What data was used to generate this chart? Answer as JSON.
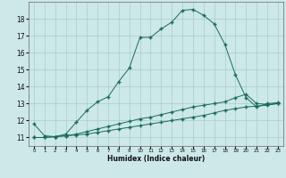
{
  "xlabel": "Humidex (Indice chaleur)",
  "bg_color": "#cce8e8",
  "grid_color": "#aacccc",
  "line_color": "#1a6b5a",
  "xlim": [
    -0.5,
    23.5
  ],
  "ylim": [
    10.5,
    19.0
  ],
  "yticks": [
    11,
    12,
    13,
    14,
    15,
    16,
    17,
    18
  ],
  "xticks": [
    0,
    1,
    2,
    3,
    4,
    5,
    6,
    7,
    8,
    9,
    10,
    11,
    12,
    13,
    14,
    15,
    16,
    17,
    18,
    19,
    20,
    21,
    22,
    23
  ],
  "curve1_x": [
    0,
    1,
    2,
    3,
    4,
    5,
    6,
    7,
    8,
    9,
    10,
    11,
    12,
    13,
    14,
    15,
    16,
    17,
    18,
    19,
    20,
    21,
    22,
    23
  ],
  "curve1_y": [
    11.8,
    11.1,
    11.05,
    11.2,
    11.9,
    12.6,
    13.1,
    13.4,
    14.3,
    15.1,
    16.9,
    16.9,
    17.4,
    17.8,
    18.5,
    18.55,
    18.2,
    17.7,
    16.5,
    14.7,
    13.35,
    12.8,
    13.0,
    13.05
  ],
  "curve2_x": [
    0,
    1,
    2,
    3,
    4,
    5,
    6,
    7,
    8,
    9,
    10,
    11,
    12,
    13,
    14,
    15,
    16,
    17,
    18,
    19,
    20,
    21,
    22,
    23
  ],
  "curve2_y": [
    11.0,
    11.0,
    11.05,
    11.1,
    11.2,
    11.35,
    11.5,
    11.65,
    11.8,
    11.95,
    12.1,
    12.2,
    12.35,
    12.5,
    12.65,
    12.8,
    12.9,
    13.0,
    13.1,
    13.35,
    13.55,
    13.0,
    12.95,
    13.0
  ],
  "curve3_x": [
    0,
    1,
    2,
    3,
    4,
    5,
    6,
    7,
    8,
    9,
    10,
    11,
    12,
    13,
    14,
    15,
    16,
    17,
    18,
    19,
    20,
    21,
    22,
    23
  ],
  "curve3_y": [
    11.0,
    11.0,
    11.05,
    11.1,
    11.15,
    11.2,
    11.3,
    11.4,
    11.5,
    11.6,
    11.7,
    11.8,
    11.9,
    12.0,
    12.1,
    12.2,
    12.3,
    12.45,
    12.6,
    12.7,
    12.8,
    12.85,
    12.9,
    13.0
  ],
  "marker": "+",
  "markersize": 2.5,
  "linewidth": 0.7
}
